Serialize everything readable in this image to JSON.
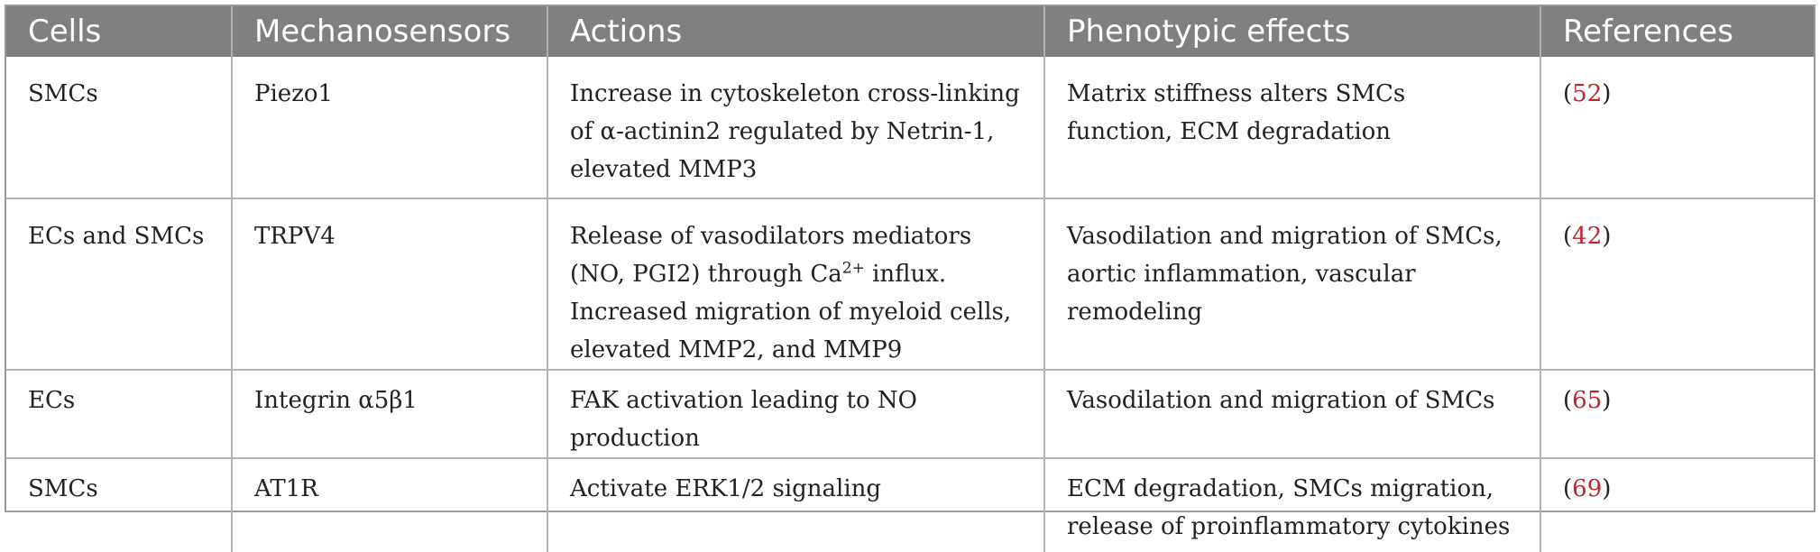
{
  "table": {
    "headers": [
      "Cells",
      "Mechanosensors",
      "Actions",
      "Phenotypic effects",
      "References"
    ],
    "rows": [
      {
        "cells": "SMCs",
        "mechanosensor": "Piezo1",
        "action": "Increase in cytoskeleton cross-linking of α-actinin2 regulated by Netrin-1, elevated MMP3",
        "effect": "Matrix stiffness alters SMCs function, ECM degradation",
        "ref_open": "(",
        "ref_num": "52",
        "ref_close": ")"
      },
      {
        "cells": "ECs and SMCs",
        "mechanosensor": "TRPV4",
        "action_part1": "Release of vasodilators mediators (NO, PGI2) through Ca",
        "action_sup": "2+",
        "action_part2": " influx. Increased migration of myeloid cells, elevated MMP2, and MMP9",
        "effect": "Vasodilation and migration of SMCs, aortic inflammation, vascular remodeling",
        "ref_open": "(",
        "ref_num": "42",
        "ref_close": ")"
      },
      {
        "cells": "ECs",
        "mechanosensor": "Integrin α5β1",
        "action": "FAK activation leading to NO production",
        "effect": "Vasodilation and migration of SMCs",
        "ref_open": "(",
        "ref_num": "65",
        "ref_close": ")"
      },
      {
        "cells": "SMCs",
        "mechanosensor": "AT1R",
        "action": "Activate ERK1/2 signaling",
        "effect": "ECM degradation, SMCs migration, release of proinflammatory cytokines",
        "ref_open": "(",
        "ref_num": "69",
        "ref_close": ")"
      }
    ]
  }
}
